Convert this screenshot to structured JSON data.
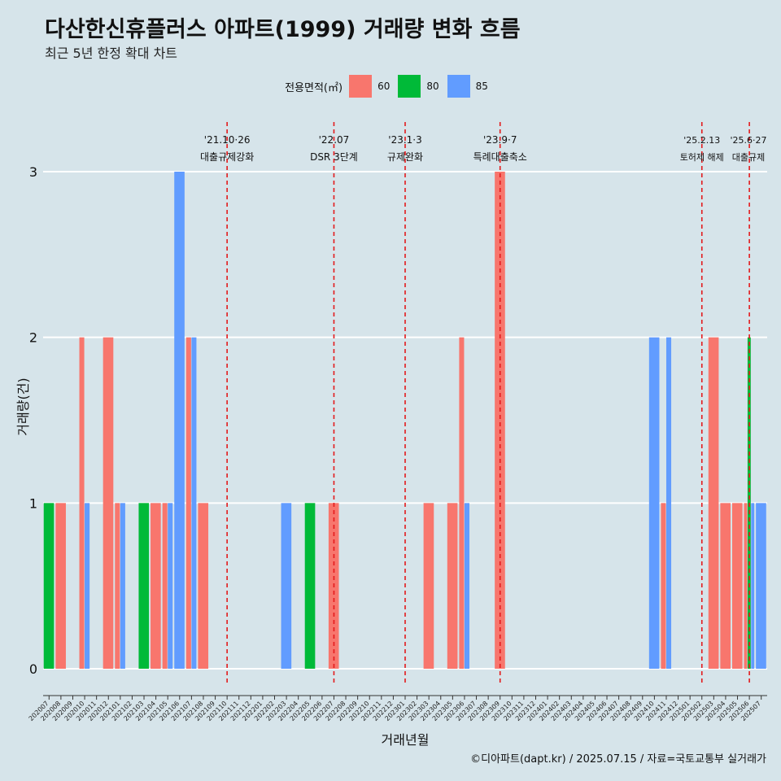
{
  "title": "다산한신휴플러스 아파트(1999) 거래량 변화 흐름",
  "subtitle": "최근 5년 한정 확대 차트",
  "caption": "©디아파트(dapt.kr) / 2025.07.15 / 자료=국토교통부 실거래가",
  "legend": {
    "title": "전용면적(㎡)",
    "items": [
      {
        "label": "60",
        "color": "#f8766d"
      },
      {
        "label": "80",
        "color": "#00ba38"
      },
      {
        "label": "85",
        "color": "#619cff"
      }
    ]
  },
  "chart_data": {
    "type": "bar",
    "xlabel": "거래년월",
    "ylabel": "거래량(건)",
    "ylim": [
      0,
      3
    ],
    "yticks": [
      0,
      1,
      2,
      3
    ],
    "grid": true,
    "legend_position": "top",
    "categories": [
      "202007",
      "202008",
      "202009",
      "202010",
      "202011",
      "202012",
      "202101",
      "202102",
      "202103",
      "202104",
      "202105",
      "202106",
      "202107",
      "202108",
      "202109",
      "202110",
      "202111",
      "202112",
      "202201",
      "202202",
      "202203",
      "202204",
      "202205",
      "202206",
      "202207",
      "202208",
      "202209",
      "202210",
      "202211",
      "202212",
      "202301",
      "202302",
      "202303",
      "202304",
      "202305",
      "202306",
      "202307",
      "202308",
      "202309",
      "202310",
      "202311",
      "202312",
      "202401",
      "202402",
      "202403",
      "202404",
      "202405",
      "202406",
      "202407",
      "202408",
      "202409",
      "202410",
      "202411",
      "202412",
      "202501",
      "202502",
      "202503",
      "202504",
      "202505",
      "202506",
      "202507"
    ],
    "series": [
      {
        "name": "60",
        "color": "#f8766d",
        "values": [
          0,
          1,
          0,
          2,
          0,
          2,
          1,
          0,
          0,
          1,
          1,
          0,
          2,
          1,
          0,
          0,
          0,
          0,
          0,
          0,
          0,
          0,
          0,
          0,
          1,
          0,
          0,
          0,
          0,
          0,
          0,
          0,
          1,
          0,
          1,
          2,
          0,
          0,
          3,
          0,
          0,
          0,
          0,
          0,
          0,
          0,
          0,
          0,
          0,
          0,
          0,
          0,
          1,
          0,
          0,
          0,
          2,
          1,
          1,
          1,
          0
        ]
      },
      {
        "name": "80",
        "color": "#00ba38",
        "values": [
          1,
          0,
          0,
          0,
          0,
          0,
          0,
          0,
          1,
          0,
          0,
          0,
          0,
          0,
          0,
          0,
          0,
          0,
          0,
          0,
          0,
          0,
          1,
          0,
          0,
          0,
          0,
          0,
          0,
          0,
          0,
          0,
          0,
          0,
          0,
          0,
          0,
          0,
          0,
          0,
          0,
          0,
          0,
          0,
          0,
          0,
          0,
          0,
          0,
          0,
          0,
          0,
          0,
          0,
          0,
          0,
          0,
          0,
          0,
          2,
          0
        ]
      },
      {
        "name": "85",
        "color": "#619cff",
        "values": [
          0,
          0,
          0,
          1,
          0,
          0,
          1,
          0,
          0,
          0,
          1,
          3,
          2,
          0,
          0,
          0,
          0,
          0,
          0,
          0,
          1,
          0,
          0,
          0,
          0,
          0,
          0,
          0,
          0,
          0,
          0,
          0,
          0,
          0,
          0,
          1,
          0,
          0,
          0,
          0,
          0,
          0,
          0,
          0,
          0,
          0,
          0,
          0,
          0,
          0,
          0,
          2,
          2,
          0,
          0,
          0,
          0,
          0,
          0,
          1,
          1
        ]
      }
    ],
    "annotations": [
      {
        "x": "202110",
        "date": "'21.10·26",
        "label": "대출규제강화"
      },
      {
        "x": "202207",
        "date": "'22.07",
        "label": "DSR 3단계"
      },
      {
        "x": "202301",
        "date": "'23.1·3",
        "label": "규제완화"
      },
      {
        "x": "202309",
        "date": "'23.9·7",
        "label": "특례대출축소"
      },
      {
        "x": "202502",
        "date": "'25.2.13",
        "label": "토허제 해제"
      },
      {
        "x": "202506",
        "date": "'25.6·27",
        "label": "대출규제"
      }
    ]
  }
}
